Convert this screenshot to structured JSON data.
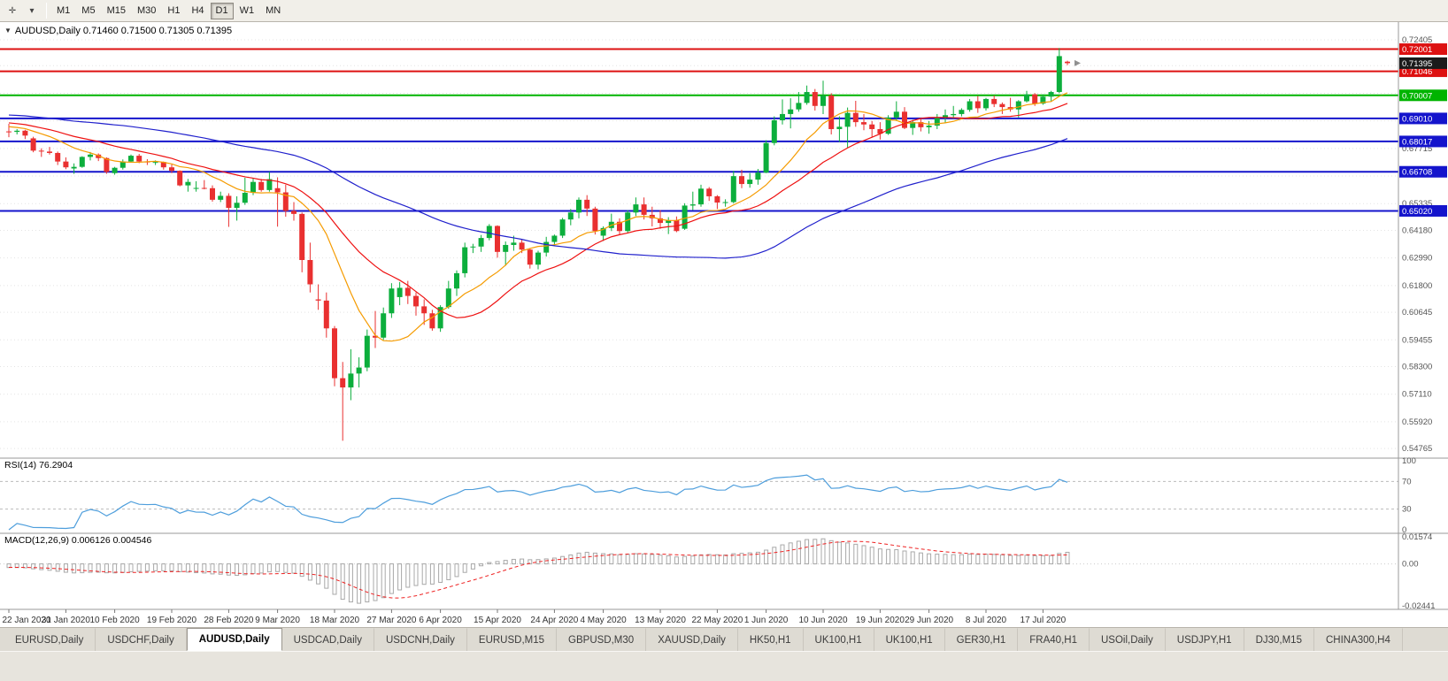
{
  "toolbar": {
    "icons": [
      {
        "name": "chart-objects-icon",
        "glyph": "✛"
      },
      {
        "name": "dropdown-caret-icon",
        "glyph": "▾"
      }
    ],
    "timeframes": [
      "M1",
      "M5",
      "M15",
      "M30",
      "H1",
      "H4",
      "D1",
      "W1",
      "MN"
    ],
    "active": "D1"
  },
  "chart_header": {
    "marker": "▼",
    "title": "AUDUSD,Daily 0.71460 0.71500 0.71305 0.71395"
  },
  "tab_bar": {
    "active_index": 2,
    "tabs": [
      "EURUSD,Daily",
      "USDCHF,Daily",
      "AUDUSD,Daily",
      "USDCAD,Daily",
      "USDCNH,Daily",
      "EURUSD,M15",
      "GBPUSD,M30",
      "XAUUSD,Daily",
      "HK50,H1",
      "UK100,H1",
      "UK100,H1",
      "GER30,H1",
      "FRA40,H1",
      "USOil,Daily",
      "USDJPY,H1",
      "DJ30,M15",
      "CHINA300,H4"
    ],
    "note": ""
  },
  "chart_data": {
    "type": "candlestick",
    "symbol": "AUDUSD",
    "timeframe": "Daily",
    "ohlc_display": {
      "open": "0.71460",
      "high": "0.71500",
      "low": "0.71305",
      "close": "0.71395"
    },
    "style": {
      "up": "#0cae3c",
      "down": "#e93030",
      "grid": "#e4e4e4"
    },
    "price_range": {
      "top": 0.729,
      "bottom": 0.5435
    },
    "price_axis": {
      "ticks_gray": [
        "0.72405",
        "0.67715",
        "0.65335",
        "0.64180",
        "0.62990",
        "0.61800",
        "0.60645",
        "0.59455",
        "0.58300",
        "0.57110",
        "0.55920",
        "0.54765"
      ],
      "grid_values": [
        0.72405,
        0.71285,
        0.70095,
        0.68905,
        0.67715,
        0.66525,
        0.65335,
        0.6418,
        0.6299,
        0.618,
        0.60645,
        0.59455,
        0.583,
        0.5711,
        0.5592,
        0.54765
      ],
      "current": {
        "label": "0.71395",
        "price": 0.71395,
        "box_color": "#1b1b1b"
      }
    },
    "levels": [
      {
        "price": 0.72001,
        "label": "0.72001",
        "color": "#dd1111"
      },
      {
        "price": 0.71046,
        "label": "0.71046",
        "color": "#dd1111"
      },
      {
        "price": 0.70007,
        "label": "0.70007",
        "color": "#00b400"
      },
      {
        "price": 0.6901,
        "label": "0.69010",
        "color": "#1414cc"
      },
      {
        "price": 0.68017,
        "label": "0.68017",
        "color": "#1414cc"
      },
      {
        "price": 0.66708,
        "label": "0.66708",
        "color": "#1414cc"
      },
      {
        "price": 0.6502,
        "label": "0.65020",
        "color": "#1414cc"
      }
    ],
    "moving_averages": [
      {
        "name": "fast",
        "type": "sma",
        "period": 10,
        "color": "#f59b00"
      },
      {
        "name": "medium",
        "type": "sma",
        "period": 20,
        "color": "#ee1111"
      },
      {
        "name": "slow",
        "type": "sma",
        "period": 55,
        "color": "#2020cc"
      }
    ],
    "indicators": {
      "rsi": {
        "label": "RSI(14) 76.2904",
        "period": 14,
        "value": "76.2904",
        "color": "#4e9edc",
        "levels": [
          70,
          30
        ],
        "axis_labels": [
          "100",
          "70",
          "30",
          "0"
        ]
      },
      "macd": {
        "label": "MACD(12,26,9) 0.006126 0.004546",
        "fast": 12,
        "slow": 26,
        "signal": 9,
        "value_macd": "0.006126",
        "value_signal": "0.004546",
        "axis_labels": [
          "0.01574",
          "0.00",
          "-0.02441"
        ],
        "range": {
          "max": 0.01574,
          "min": -0.02441
        },
        "histogram_color": "#a8a8a8",
        "signal_color": "#ee2222"
      }
    },
    "time_axis": {
      "ticks": [
        {
          "i": 0,
          "label": "22 Jan 2020"
        },
        {
          "i": 7,
          "label": "31 Jan 2020"
        },
        {
          "i": 13,
          "label": "10 Feb 2020"
        },
        {
          "i": 20,
          "label": "19 Feb 2020"
        },
        {
          "i": 27,
          "label": "28 Feb 2020"
        },
        {
          "i": 33,
          "label": "9 Mar 2020"
        },
        {
          "i": 40,
          "label": "18 Mar 2020"
        },
        {
          "i": 47,
          "label": "27 Mar 2020"
        },
        {
          "i": 53,
          "label": "6 Apr 2020"
        },
        {
          "i": 60,
          "label": "15 Apr 2020"
        },
        {
          "i": 67,
          "label": "24 Apr 2020"
        },
        {
          "i": 73,
          "label": "4 May 2020"
        },
        {
          "i": 80,
          "label": "13 May 2020"
        },
        {
          "i": 87,
          "label": "22 May 2020"
        },
        {
          "i": 93,
          "label": "1 Jun 2020"
        },
        {
          "i": 100,
          "label": "10 Jun 2020"
        },
        {
          "i": 107,
          "label": "19 Jun 2020"
        },
        {
          "i": 113,
          "label": "29 Jun 2020"
        },
        {
          "i": 120,
          "label": "8 Jul 2020"
        },
        {
          "i": 127,
          "label": "17 Jul 2020"
        }
      ]
    },
    "candles": [
      [
        0.6845,
        0.6878,
        0.682,
        0.6843
      ],
      [
        0.6843,
        0.6855,
        0.6832,
        0.6848
      ],
      [
        0.6848,
        0.6852,
        0.6812,
        0.6827
      ],
      [
        0.6815,
        0.6822,
        0.6755,
        0.6762
      ],
      [
        0.6762,
        0.6772,
        0.6735,
        0.6758
      ],
      [
        0.6758,
        0.6778,
        0.6745,
        0.6752
      ],
      [
        0.6752,
        0.6758,
        0.67,
        0.6715
      ],
      [
        0.6715,
        0.6733,
        0.6682,
        0.669
      ],
      [
        0.6685,
        0.6707,
        0.6662,
        0.6692
      ],
      [
        0.6692,
        0.6738,
        0.6688,
        0.6735
      ],
      [
        0.6735,
        0.6756,
        0.672,
        0.6745
      ],
      [
        0.6745,
        0.675,
        0.6717,
        0.673
      ],
      [
        0.673,
        0.6733,
        0.6662,
        0.667
      ],
      [
        0.6665,
        0.6692,
        0.6658,
        0.6688
      ],
      [
        0.6688,
        0.6724,
        0.668,
        0.6715
      ],
      [
        0.6715,
        0.6745,
        0.671,
        0.674
      ],
      [
        0.674,
        0.6748,
        0.6708,
        0.6715
      ],
      [
        0.6715,
        0.6725,
        0.67,
        0.6712
      ],
      [
        0.6712,
        0.672,
        0.67,
        0.6713
      ],
      [
        0.6713,
        0.6715,
        0.668,
        0.669
      ],
      [
        0.669,
        0.6702,
        0.6665,
        0.6675
      ],
      [
        0.6675,
        0.6677,
        0.6608,
        0.6612
      ],
      [
        0.6612,
        0.664,
        0.6585,
        0.6627
      ],
      [
        0.66,
        0.663,
        0.6585,
        0.6601
      ],
      [
        0.6601,
        0.6635,
        0.6595,
        0.66
      ],
      [
        0.66,
        0.6612,
        0.6542,
        0.655
      ],
      [
        0.655,
        0.6585,
        0.654,
        0.6567
      ],
      [
        0.6567,
        0.6578,
        0.6433,
        0.6515
      ],
      [
        0.6515,
        0.6565,
        0.646,
        0.6537
      ],
      [
        0.6537,
        0.6645,
        0.6528,
        0.658
      ],
      [
        0.658,
        0.6645,
        0.657,
        0.6627
      ],
      [
        0.6627,
        0.664,
        0.6585,
        0.6592
      ],
      [
        0.6592,
        0.667,
        0.6585,
        0.6639
      ],
      [
        0.66,
        0.6647,
        0.6434,
        0.6582
      ],
      [
        0.6582,
        0.6615,
        0.6477,
        0.6502
      ],
      [
        0.6502,
        0.654,
        0.646,
        0.6489
      ],
      [
        0.6489,
        0.6495,
        0.6237,
        0.629
      ],
      [
        0.629,
        0.6365,
        0.615,
        0.6185
      ],
      [
        0.612,
        0.6185,
        0.6075,
        0.6115
      ],
      [
        0.6115,
        0.615,
        0.5955,
        0.5995
      ],
      [
        0.5995,
        0.6005,
        0.5745,
        0.578
      ],
      [
        0.578,
        0.585,
        0.551,
        0.574
      ],
      [
        0.574,
        0.5905,
        0.5685,
        0.58
      ],
      [
        0.58,
        0.587,
        0.574,
        0.5826
      ],
      [
        0.5826,
        0.599,
        0.581,
        0.5963
      ],
      [
        0.5963,
        0.607,
        0.591,
        0.5955
      ],
      [
        0.5955,
        0.6085,
        0.5945,
        0.606
      ],
      [
        0.606,
        0.619,
        0.604,
        0.6167
      ],
      [
        0.613,
        0.6195,
        0.6095,
        0.617
      ],
      [
        0.617,
        0.62,
        0.61,
        0.6135
      ],
      [
        0.6135,
        0.615,
        0.605,
        0.609
      ],
      [
        0.609,
        0.612,
        0.601,
        0.606
      ],
      [
        0.606,
        0.6075,
        0.5985,
        0.5995
      ],
      [
        0.5995,
        0.6095,
        0.598,
        0.6087
      ],
      [
        0.6087,
        0.62,
        0.608,
        0.6167
      ],
      [
        0.6167,
        0.6245,
        0.6135,
        0.6233
      ],
      [
        0.6233,
        0.6365,
        0.6215,
        0.6345
      ],
      [
        0.6345,
        0.636,
        0.632,
        0.6348
      ],
      [
        0.6348,
        0.6398,
        0.6325,
        0.6385
      ],
      [
        0.6385,
        0.6445,
        0.6375,
        0.6437
      ],
      [
        0.6437,
        0.644,
        0.63,
        0.6325
      ],
      [
        0.6325,
        0.637,
        0.6265,
        0.6355
      ],
      [
        0.6355,
        0.6395,
        0.633,
        0.6365
      ],
      [
        0.6365,
        0.638,
        0.632,
        0.6335
      ],
      [
        0.6335,
        0.634,
        0.6253,
        0.627
      ],
      [
        0.627,
        0.633,
        0.625,
        0.6322
      ],
      [
        0.6322,
        0.639,
        0.6305,
        0.6368
      ],
      [
        0.6368,
        0.64,
        0.635,
        0.6395
      ],
      [
        0.6395,
        0.6472,
        0.6385,
        0.6465
      ],
      [
        0.6465,
        0.651,
        0.644,
        0.6495
      ],
      [
        0.6495,
        0.656,
        0.647,
        0.655
      ],
      [
        0.655,
        0.657,
        0.648,
        0.6512
      ],
      [
        0.6512,
        0.652,
        0.64,
        0.6415
      ],
      [
        0.6395,
        0.6435,
        0.6372,
        0.6428
      ],
      [
        0.6428,
        0.649,
        0.6415,
        0.6455
      ],
      [
        0.6455,
        0.647,
        0.64,
        0.6415
      ],
      [
        0.6415,
        0.6505,
        0.6405,
        0.6495
      ],
      [
        0.6495,
        0.656,
        0.648,
        0.653
      ],
      [
        0.653,
        0.656,
        0.6465,
        0.6485
      ],
      [
        0.6485,
        0.652,
        0.6435,
        0.647
      ],
      [
        0.647,
        0.6505,
        0.6425,
        0.645
      ],
      [
        0.645,
        0.6475,
        0.6402,
        0.6462
      ],
      [
        0.6462,
        0.6478,
        0.641,
        0.6415
      ],
      [
        0.6425,
        0.6535,
        0.642,
        0.6525
      ],
      [
        0.6525,
        0.6585,
        0.6505,
        0.653
      ],
      [
        0.653,
        0.6615,
        0.652,
        0.6598
      ],
      [
        0.6598,
        0.6605,
        0.6545,
        0.6565
      ],
      [
        0.6565,
        0.657,
        0.651,
        0.6538
      ],
      [
        0.6538,
        0.6552,
        0.652,
        0.654
      ],
      [
        0.654,
        0.6675,
        0.6535,
        0.6652
      ],
      [
        0.6652,
        0.668,
        0.66,
        0.6618
      ],
      [
        0.6618,
        0.6665,
        0.6602,
        0.6637
      ],
      [
        0.6637,
        0.6683,
        0.6615,
        0.6667
      ],
      [
        0.6667,
        0.6807,
        0.6665,
        0.6795
      ],
      [
        0.6795,
        0.691,
        0.6785,
        0.6893
      ],
      [
        0.6893,
        0.6983,
        0.6875,
        0.692
      ],
      [
        0.692,
        0.6988,
        0.6858,
        0.694
      ],
      [
        0.694,
        0.7015,
        0.693,
        0.6968
      ],
      [
        0.6968,
        0.7043,
        0.696,
        0.7015
      ],
      [
        0.7015,
        0.7028,
        0.6935,
        0.6955
      ],
      [
        0.6955,
        0.7064,
        0.692,
        0.7
      ],
      [
        0.7,
        0.701,
        0.6832,
        0.6855
      ],
      [
        0.6855,
        0.691,
        0.68,
        0.6865
      ],
      [
        0.6865,
        0.6948,
        0.6775,
        0.6925
      ],
      [
        0.6925,
        0.6977,
        0.6865,
        0.6885
      ],
      [
        0.6885,
        0.692,
        0.685,
        0.6875
      ],
      [
        0.6875,
        0.689,
        0.682,
        0.6855
      ],
      [
        0.6855,
        0.6885,
        0.681,
        0.6835
      ],
      [
        0.6835,
        0.6915,
        0.683,
        0.6905
      ],
      [
        0.6905,
        0.6975,
        0.689,
        0.693
      ],
      [
        0.693,
        0.695,
        0.6855,
        0.686
      ],
      [
        0.686,
        0.6895,
        0.683,
        0.6885
      ],
      [
        0.6885,
        0.69,
        0.6845,
        0.6863
      ],
      [
        0.6863,
        0.689,
        0.6835,
        0.687
      ],
      [
        0.687,
        0.692,
        0.6855,
        0.6903
      ],
      [
        0.6903,
        0.694,
        0.688,
        0.6915
      ],
      [
        0.6915,
        0.6955,
        0.69,
        0.692
      ],
      [
        0.692,
        0.6945,
        0.691,
        0.6938
      ],
      [
        0.6938,
        0.6985,
        0.693,
        0.6975
      ],
      [
        0.6975,
        0.6998,
        0.6925,
        0.6945
      ],
      [
        0.6945,
        0.699,
        0.6935,
        0.6985
      ],
      [
        0.6985,
        0.7,
        0.695,
        0.6963
      ],
      [
        0.6963,
        0.697,
        0.692,
        0.695
      ],
      [
        0.695,
        0.699,
        0.693,
        0.694
      ],
      [
        0.694,
        0.698,
        0.6905,
        0.6975
      ],
      [
        0.6975,
        0.702,
        0.697,
        0.7005
      ],
      [
        0.7005,
        0.701,
        0.6955,
        0.6965
      ],
      [
        0.6965,
        0.7005,
        0.696,
        0.6995
      ],
      [
        0.6995,
        0.702,
        0.6975,
        0.7015
      ],
      [
        0.7015,
        0.7205,
        0.701,
        0.717
      ],
      [
        0.7146,
        0.715,
        0.71305,
        0.71395
      ]
    ]
  }
}
